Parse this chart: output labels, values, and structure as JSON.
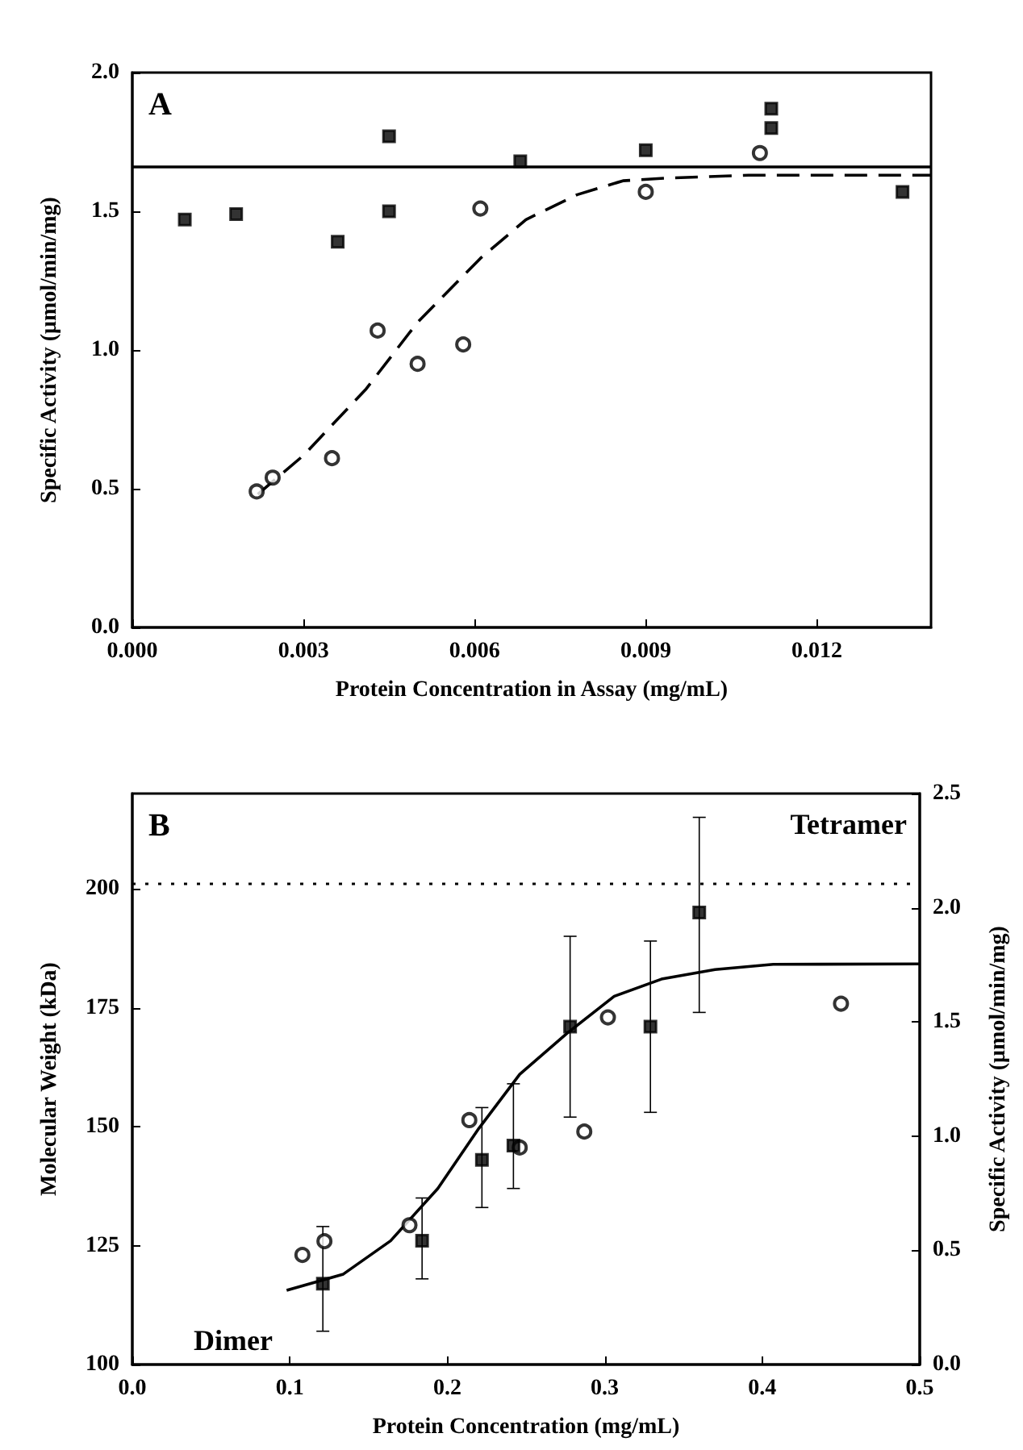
{
  "chart_data": [
    {
      "type": "scatter",
      "xlabel": "Protein Concentration in Assay (mg/mL)",
      "ylabel": "Specific Activity (μmol/min/mg)",
      "annotations": [
        "A"
      ],
      "xlim": [
        0,
        0.014
      ],
      "xticks": [
        {
          "value": 0,
          "label": "0.000"
        },
        0.003,
        0.006,
        0.009,
        0.012
      ],
      "ylim": [
        0,
        2
      ],
      "yticks": [
        {
          "value": 0,
          "label": "0.0"
        },
        0.5,
        {
          "value": 1,
          "label": "1.0"
        },
        1.5,
        {
          "value": 2,
          "label": "2.0"
        }
      ],
      "grid": false,
      "series": [
        {
          "marker": "square",
          "color": "#000000",
          "x": [
            0.00092,
            0.00182,
            0.0036,
            0.0045,
            0.0045,
            0.0068,
            0.009,
            0.0112,
            0.0112,
            0.0135
          ],
          "values": [
            1.47,
            1.49,
            1.39,
            1.77,
            1.5,
            1.68,
            1.72,
            1.87,
            1.8,
            1.57
          ]
        },
        {
          "marker": "circle",
          "color": "#000000",
          "x": [
            0.00218,
            0.00246,
            0.0035,
            0.0043,
            0.005,
            0.0058,
            0.0061,
            0.009,
            0.011
          ],
          "values": [
            0.49,
            0.54,
            0.61,
            1.07,
            0.95,
            1.02,
            1.51,
            1.57,
            1.71
          ]
        },
        {
          "type": "line",
          "line_style": "solid",
          "color": "#000000",
          "x": [
            0,
            0.014
          ],
          "values": [
            1.66,
            1.66
          ]
        },
        {
          "type": "line",
          "line_style": "dashed",
          "color": "#000000",
          "x": [
            0.0022,
            0.003,
            0.0041,
            0.005,
            0.0061,
            0.0069,
            0.0078,
            0.0086,
            0.0094,
            0.0108,
            0.014
          ],
          "values": [
            0.48,
            0.62,
            0.86,
            1.1,
            1.33,
            1.47,
            1.56,
            1.61,
            1.62,
            1.63,
            1.63
          ]
        }
      ]
    },
    {
      "type": "scatter",
      "xlabel": "Protein Concentration (mg/mL)",
      "ylabel": "Molecular Weight (kDa)",
      "y2label": "Specific Activity (μmol/min/mg)",
      "annotations": [
        "B",
        "Tetramer",
        "Dimer"
      ],
      "xlim": [
        0,
        0.5
      ],
      "xticks": [
        {
          "value": 0,
          "label": "0.0"
        },
        0.1,
        0.2,
        0.3,
        0.4,
        0.5
      ],
      "ylim": [
        100,
        220
      ],
      "yticks": [
        100,
        125,
        150,
        175,
        200
      ],
      "y2lim": [
        0,
        2.5
      ],
      "y2ticks": [
        {
          "value": 0,
          "label": "0.0"
        },
        0.5,
        {
          "value": 1,
          "label": "1.0"
        },
        1.5,
        {
          "value": 2,
          "label": "2.0"
        },
        2.5
      ],
      "grid": false,
      "ref_lines": [
        {
          "axis": "y",
          "value": 201,
          "line_style": "dotted",
          "color": "#000000"
        }
      ],
      "series": [
        {
          "marker": "square",
          "color": "#000000",
          "x": [
            0.121,
            0.184,
            0.222,
            0.242,
            0.278,
            0.329,
            0.36
          ],
          "values": [
            117,
            126,
            143,
            146,
            171,
            171,
            195
          ],
          "errors": [
            [
              107,
              129
            ],
            [
              118,
              135
            ],
            [
              133,
              154
            ],
            [
              137,
              159
            ],
            [
              152,
              190
            ],
            [
              153,
              189
            ],
            [
              174,
              215
            ]
          ]
        },
        {
          "marker": "circle",
          "axis": "y2",
          "color": "#000000",
          "x": [
            0.108,
            0.122,
            0.176,
            0.214,
            0.246,
            0.287,
            0.302,
            0.45
          ],
          "values": [
            0.48,
            0.54,
            0.61,
            1.07,
            0.95,
            1.02,
            1.52,
            1.58
          ]
        },
        {
          "type": "line",
          "line_style": "solid",
          "color": "#000000",
          "x": [
            0.098,
            0.134,
            0.164,
            0.194,
            0.22,
            0.246,
            0.276,
            0.306,
            0.336,
            0.37,
            0.407,
            0.5
          ],
          "values": [
            115.6,
            119,
            126,
            137,
            149.6,
            161,
            169.6,
            177.4,
            181,
            183,
            184.1,
            184.2
          ]
        }
      ]
    }
  ]
}
